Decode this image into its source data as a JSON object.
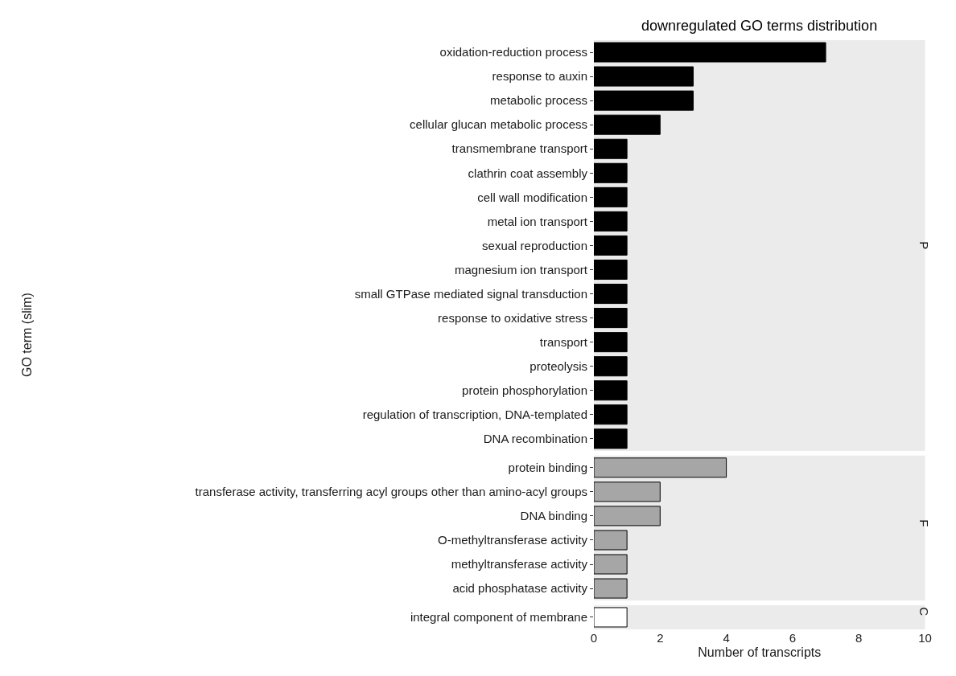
{
  "chart_data": [
    {
      "type": "bar",
      "orientation": "horizontal",
      "title": "downregulated GO terms distribution",
      "ylabel": "GO term (slim)",
      "annotations": [
        "P"
      ],
      "categories": [
        "oxidation-reduction process",
        "response to auxin",
        "metabolic process",
        "cellular glucan metabolic process",
        "transmembrane transport",
        "clathrin coat assembly",
        "cell wall modification",
        "metal ion transport",
        "sexual reproduction",
        "magnesium ion transport",
        "small GTPase mediated signal transduction",
        "response to oxidative stress",
        "transport",
        "proteolysis",
        "protein phosphorylation",
        "regulation of transcription, DNA-templated",
        "DNA recombination"
      ],
      "series": [
        {
          "color": "#000000",
          "values": [
            7,
            3,
            3,
            2,
            1,
            1,
            1,
            1,
            1,
            1,
            1,
            1,
            1,
            1,
            1,
            1,
            1
          ]
        }
      ],
      "xlim": [
        0,
        10
      ],
      "xticks": [
        0,
        2,
        4,
        6,
        8,
        10
      ],
      "tick_labels": "y",
      "grid": false
    },
    {
      "type": "bar",
      "orientation": "horizontal",
      "annotations": [
        "F"
      ],
      "categories": [
        "protein binding",
        "transferase activity, transferring acyl groups other than amino-acyl groups",
        "DNA binding",
        "O-methyltransferase activity",
        "methyltransferase activity",
        "acid phosphatase activity"
      ],
      "series": [
        {
          "color": "#a6a6a6",
          "values": [
            4,
            2,
            2,
            1,
            1,
            1
          ]
        }
      ],
      "xlim": [
        0,
        10
      ],
      "xticks": [
        0,
        2,
        4,
        6,
        8,
        10
      ],
      "tick_labels": "y",
      "grid": false
    },
    {
      "type": "bar",
      "orientation": "horizontal",
      "xlabel": "Number of transcripts",
      "annotations": [
        "C"
      ],
      "categories": [
        "integral component of membrane"
      ],
      "series": [
        {
          "color": "#ffffff",
          "values": [
            1
          ]
        }
      ],
      "xlim": [
        0,
        10
      ],
      "xticks": [
        0,
        2,
        4,
        6,
        8,
        10
      ],
      "grid": false
    }
  ]
}
